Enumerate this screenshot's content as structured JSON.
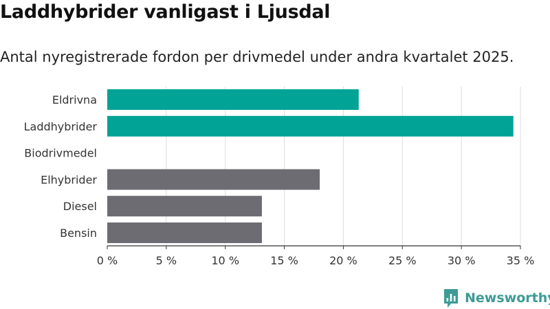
{
  "title": "Laddhybrider vanligast i Ljusdal",
  "subtitle": "Antal nyregistrerade fordon per drivmedel under andra kvartalet 2025.",
  "brand": {
    "name": "Newsworthy",
    "icon": "newsworthy-logo-icon"
  },
  "colors": {
    "highlight": "#00a396",
    "other": "#6d6c72",
    "grid": "#dcdcdc",
    "axis": "#333333",
    "brand": "#3d9b95"
  },
  "chart_data": {
    "type": "bar",
    "orientation": "horizontal",
    "categories": [
      "Eldrivna",
      "Laddhybrider",
      "Biodrivmedel",
      "Elhybrider",
      "Diesel",
      "Bensin"
    ],
    "values": [
      21.3,
      34.4,
      0,
      18.0,
      13.1,
      13.1
    ],
    "highlighted": [
      true,
      true,
      false,
      false,
      false,
      false
    ],
    "unit": "%",
    "xlim": [
      0,
      35
    ],
    "xticks": [
      0,
      5,
      10,
      15,
      20,
      25,
      30,
      35
    ],
    "xtick_labels": [
      "0 %",
      "5 %",
      "10 %",
      "15 %",
      "20 %",
      "25 %",
      "30 %",
      "35 %"
    ],
    "grid": true,
    "xlabel": "",
    "ylabel": ""
  }
}
